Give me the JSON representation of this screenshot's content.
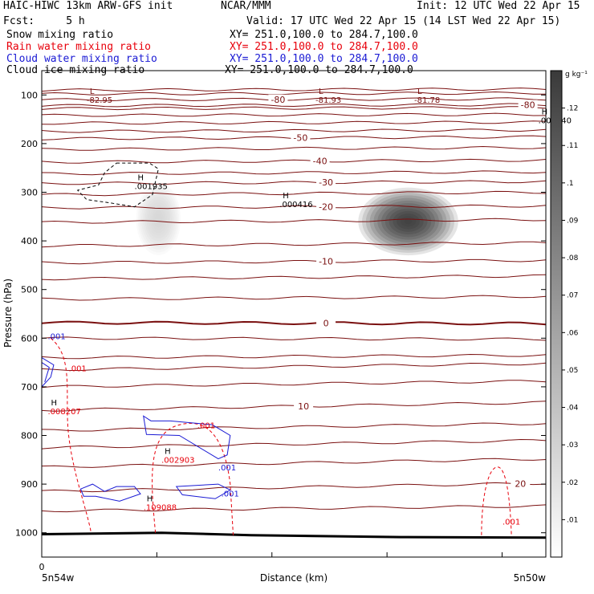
{
  "header": {
    "model": "HAIC-HIWC 13km ARW-GFS init",
    "org": "NCAR/MMM",
    "init": "Init: 12 UTC Wed 22 Apr 15",
    "fcst": "Fcst:     5 h",
    "valid": "Valid: 17 UTC Wed 22 Apr 15 (14 LST Wed 22 Apr 15)",
    "fields": [
      {
        "name": "Snow mixing ratio",
        "xy": "XY= 251.0,100.0 to 284.7,100.0",
        "color": "#000000"
      },
      {
        "name": "Rain water mixing ratio",
        "xy": "XY= 251.0,100.0 to 284.7,100.0",
        "color": "#e8000b"
      },
      {
        "name": "Cloud water mixing ratio",
        "xy": "XY= 251.0,100.0 to 284.7,100.0",
        "color": "#1a1ad4"
      },
      {
        "name": "Cloud ice mixing ratio",
        "xy": "XY= 251.0,100.0 to 284.7,100.0",
        "color": "#000000"
      }
    ]
  },
  "chart_data": {
    "type": "heatmap",
    "description_axis": {
      "ylabel": "Pressure (hPa)",
      "xlabel": "Distance (km)",
      "yticks": [
        100,
        200,
        300,
        400,
        500,
        600,
        700,
        800,
        900,
        1000
      ],
      "ylim": [
        1050,
        50
      ],
      "xlim": [
        0,
        33.7
      ],
      "x0_label": "0",
      "x_left_label": "5n54w",
      "x_right_label": "5n50w"
    },
    "colorbar": {
      "unit": "g kg⁻¹",
      "ticks": [
        ".01",
        ".02",
        ".03",
        ".04",
        ".05",
        ".06",
        ".07",
        ".08",
        ".09",
        ".1",
        ".11",
        ".12"
      ],
      "max": 0.13
    },
    "snow_blobs": [
      {
        "x": 24.5,
        "p": 360,
        "rx": 3.6,
        "rp": 75,
        "peak": 0.12
      },
      {
        "x": 7.8,
        "p": 355,
        "rx": 1.6,
        "rp": 80,
        "peak": 0.025
      }
    ],
    "temperature_contours": [
      {
        "label": "-80",
        "p_left": 110,
        "p_right": 108,
        "label_x": 15.8
      },
      {
        "label": "-80",
        "p_left": 122,
        "p_right": 120,
        "label_x": 32.5
      },
      {
        "label": "-50",
        "p_left": 190,
        "p_right": 186,
        "label_x": 17.3
      },
      {
        "label": "-40",
        "p_left": 238,
        "p_right": 234,
        "label_x": 18.6
      },
      {
        "label": "-30",
        "p_left": 282,
        "p_right": 278,
        "label_x": 19.0
      },
      {
        "label": "-20",
        "p_left": 332,
        "p_right": 328,
        "label_x": 19.0
      },
      {
        "label": "-10",
        "p_left": 445,
        "p_right": 440,
        "label_x": 19.0
      },
      {
        "label": "0",
        "p_left": 568,
        "p_right": 570,
        "label_x": 19.0
      },
      {
        "label": "10",
        "p_left": 748,
        "p_right": 732,
        "label_x": 17.5
      },
      {
        "label": "20",
        "p_left": 915,
        "p_right": 898,
        "label_x": 32.0
      }
    ],
    "unlabeled_temperature_contours": [
      [
        90,
        88
      ],
      [
        98,
        96
      ],
      [
        128,
        126
      ],
      [
        142,
        140
      ],
      [
        158,
        156
      ],
      [
        175,
        172
      ],
      [
        212,
        208
      ],
      [
        262,
        258
      ],
      [
        305,
        300
      ],
      [
        362,
        356
      ],
      [
        410,
        404
      ],
      [
        478,
        472
      ],
      [
        520,
        514
      ],
      [
        600,
        602
      ],
      [
        640,
        635
      ],
      [
        665,
        652
      ],
      [
        700,
        688
      ],
      [
        790,
        775
      ],
      [
        825,
        810
      ],
      [
        865,
        848
      ],
      [
        955,
        945
      ]
    ],
    "extrema_labels": [
      {
        "type": "L",
        "value": "-82.95",
        "x": 3.0,
        "p": 108
      },
      {
        "type": "L",
        "value": "-81.93",
        "x": 18.3,
        "p": 108
      },
      {
        "type": "L",
        "value": "-81.78",
        "x": 24.9,
        "p": 108
      },
      {
        "type": "H",
        "value": ".000040",
        "x": 33.2,
        "p": 150
      },
      {
        "type": "H",
        "value": ".001935",
        "x": 6.2,
        "p": 285
      },
      {
        "type": "H",
        "value": ".000416",
        "x": 15.9,
        "p": 322
      },
      {
        "type": "H",
        "value": ".008207",
        "x": 0.4,
        "p": 748
      },
      {
        "type": "H",
        "value": ".002903",
        "x": 8.0,
        "p": 848
      },
      {
        "type": "H",
        "value": ".109088",
        "x": 6.8,
        "p": 945
      }
    ],
    "rain_labels": [
      {
        "text": ".001",
        "x": 1.8,
        "p": 668
      },
      {
        "text": ".001",
        "x": 10.4,
        "p": 785
      },
      {
        "text": ".001",
        "x": 30.8,
        "p": 983
      }
    ],
    "cloudwater_labels": [
      {
        "text": ".001",
        "x": 0.4,
        "p": 602
      },
      {
        "text": ".001",
        "x": 11.8,
        "p": 872
      },
      {
        "text": ".001",
        "x": 12.0,
        "p": 925
      }
    ]
  }
}
